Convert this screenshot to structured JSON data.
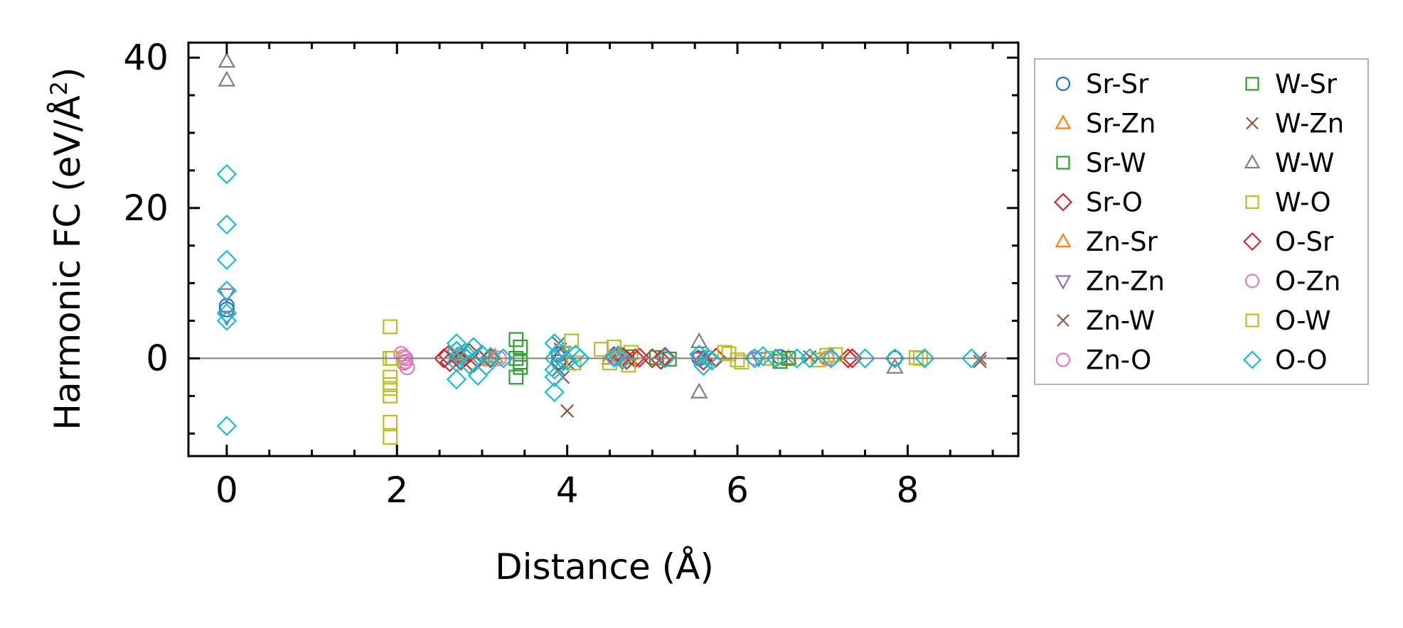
{
  "chart_data": {
    "type": "scatter",
    "title": "",
    "xlabel": "Distance (Å)",
    "ylabel_main": "Harmonic FC (eV/Å",
    "ylabel_sup": "2",
    "ylabel_close": ")",
    "xlim": [
      -0.45,
      9.3
    ],
    "ylim": [
      -13,
      42
    ],
    "x_major_ticks": [
      0,
      2,
      4,
      6,
      8
    ],
    "x_tick_labels": [
      "0",
      "2",
      "4",
      "6",
      "8"
    ],
    "x_minor_ticks": [
      -0.5,
      0.5,
      1,
      1.5,
      2.5,
      3,
      3.5,
      4.5,
      5,
      5.5,
      6.5,
      7,
      7.5,
      8.5,
      9
    ],
    "y_major_ticks": [
      0,
      20,
      40
    ],
    "y_tick_labels": [
      "0",
      "20",
      "40"
    ],
    "y_minor_ticks": [
      -10,
      -5,
      5,
      10,
      15,
      25,
      30,
      35
    ],
    "zero_line": 0,
    "grid": false,
    "legend_position": "outside-right",
    "series": [
      {
        "name": "Sr-Sr",
        "marker": "circle",
        "color": "#1f77b4",
        "x": [
          0,
          0,
          3.9,
          3.9,
          5.55,
          6.5,
          7.85
        ],
        "y": [
          7,
          6.5,
          0.5,
          -0.5,
          0,
          0.2,
          0
        ]
      },
      {
        "name": "Sr-Zn",
        "marker": "triangle-up",
        "color": "#ff7f0e",
        "x": [
          2.7,
          3.1,
          4.6,
          5.6,
          6.6
        ],
        "y": [
          0.3,
          -0.2,
          0.4,
          0.1,
          0
        ]
      },
      {
        "name": "Sr-W",
        "marker": "square",
        "color": "#2ca02c",
        "x": [
          3.4,
          3.4,
          3.4,
          4.7,
          5.2,
          6.6
        ],
        "y": [
          2.5,
          0,
          -2.5,
          0.2,
          -0.1,
          0
        ]
      },
      {
        "name": "Sr-O",
        "marker": "diamond",
        "color": "#d62728",
        "x": [
          2.55,
          2.62,
          2.7,
          2.8,
          2.9,
          3.0,
          3.1,
          4.55,
          4.7,
          4.85,
          5.0,
          5.15,
          5.6,
          5.75,
          7.3
        ],
        "y": [
          0,
          -0.5,
          1.0,
          0.2,
          -0.6,
          0.5,
          0,
          0.3,
          -0.2,
          0.1,
          0,
          0.2,
          -0.3,
          0.1,
          0
        ]
      },
      {
        "name": "Zn-Sr",
        "marker": "triangle-up",
        "color": "#ff7f0e",
        "x": [
          2.75,
          3.15,
          4.5
        ],
        "y": [
          0.5,
          0.2,
          0
        ]
      },
      {
        "name": "Zn-Zn",
        "marker": "triangle-down",
        "color": "#9467bd",
        "x": [
          0,
          0,
          3.95,
          5.55,
          6.25
        ],
        "y": [
          8.5,
          5.5,
          0.8,
          0,
          0
        ]
      },
      {
        "name": "Zn-W",
        "marker": "x",
        "color": "#8c564b",
        "x": [
          3.9,
          3.9,
          3.95,
          4.0,
          5.6,
          6.95,
          8.85
        ],
        "y": [
          2.0,
          -1.5,
          -2.5,
          -7,
          0.3,
          0,
          -0.4
        ]
      },
      {
        "name": "Zn-O",
        "marker": "circle",
        "color": "#e377c2",
        "x": [
          2.05,
          2.1,
          2.08,
          2.12,
          3.2,
          4.55,
          7.05
        ],
        "y": [
          0.6,
          0,
          -0.6,
          -1.2,
          0,
          0.1,
          0
        ]
      },
      {
        "name": "W-Sr",
        "marker": "square",
        "color": "#2ca02c",
        "x": [
          3.45,
          3.45,
          3.45,
          5.05,
          6.5
        ],
        "y": [
          1.5,
          -0.5,
          -1.2,
          0.1,
          -0.4
        ]
      },
      {
        "name": "W-Zn",
        "marker": "x",
        "color": "#8c564b",
        "x": [
          3.92,
          4.02,
          6.85,
          8.85
        ],
        "y": [
          1.2,
          -0.8,
          0.2,
          0
        ]
      },
      {
        "name": "W-W",
        "marker": "triangle-up",
        "color": "#7f7f7f",
        "x": [
          0,
          0,
          5.55,
          5.55,
          7.85
        ],
        "y": [
          39.5,
          37,
          2.2,
          -4.5,
          -1.2
        ]
      },
      {
        "name": "W-O",
        "marker": "square",
        "color": "#bcbd22",
        "x": [
          1.92,
          1.92,
          1.92,
          1.92,
          1.92,
          1.92,
          1.92,
          1.92,
          4.05,
          4.08,
          4.4,
          4.5,
          4.75,
          5.9,
          6.0,
          6.4,
          7.05,
          8.1
        ],
        "y": [
          4.2,
          0,
          -2.5,
          -3.5,
          -4,
          -5,
          -8.5,
          -10.5,
          2.3,
          -0.6,
          1.2,
          -0.6,
          0.8,
          0.6,
          -0.2,
          0,
          0.4,
          0.1
        ]
      },
      {
        "name": "O-Sr",
        "marker": "diamond",
        "color": "#d62728",
        "x": [
          2.6,
          2.75,
          2.85,
          2.95,
          4.65,
          4.8,
          5.1,
          7.35
        ],
        "y": [
          0.4,
          -0.3,
          0.7,
          0,
          0.2,
          0,
          -0.2,
          0
        ]
      },
      {
        "name": "O-Zn",
        "marker": "circle",
        "color": "#e377c2",
        "x": [
          2.08,
          2.1,
          4.6,
          6.2,
          7.1
        ],
        "y": [
          0.2,
          -0.4,
          0,
          0.1,
          0
        ]
      },
      {
        "name": "O-W",
        "marker": "square",
        "color": "#bcbd22",
        "x": [
          1.95,
          4.55,
          4.72,
          5.85,
          6.05,
          6.95,
          7.15,
          8.15
        ],
        "y": [
          0,
          1.5,
          -0.9,
          0.8,
          -0.5,
          -0.2,
          0.5,
          0
        ]
      },
      {
        "name": "O-O",
        "marker": "diamond",
        "color": "#17becf",
        "x": [
          0,
          0,
          0,
          0,
          0,
          0,
          0,
          2.7,
          2.7,
          2.7,
          2.7,
          2.72,
          2.8,
          2.85,
          2.9,
          2.95,
          3.0,
          3.05,
          3.1,
          3.25,
          3.85,
          3.85,
          3.85,
          3.85,
          3.85,
          3.9,
          4.0,
          4.1,
          4.15,
          4.55,
          4.6,
          4.65,
          5.15,
          5.55,
          5.6,
          5.65,
          5.7,
          6.2,
          6.3,
          6.45,
          6.7,
          6.85,
          7.1,
          7.5,
          7.85,
          8.2,
          8.75
        ],
        "y": [
          24.5,
          17.8,
          13.1,
          9.0,
          6.0,
          5.0,
          -9.0,
          2.0,
          1.0,
          -0.5,
          -2.8,
          0.3,
          0.8,
          -0.8,
          1.5,
          -2.3,
          0.5,
          -1.0,
          0.2,
          0,
          2.0,
          0,
          -1.5,
          -2.5,
          -4.5,
          0.8,
          -0.3,
          0.5,
          0,
          0.1,
          0.4,
          -0.2,
          0,
          0.5,
          -1.0,
          0.1,
          -0.3,
          0,
          0.3,
          0,
          0,
          0,
          0,
          0,
          0,
          0,
          0
        ]
      }
    ]
  }
}
